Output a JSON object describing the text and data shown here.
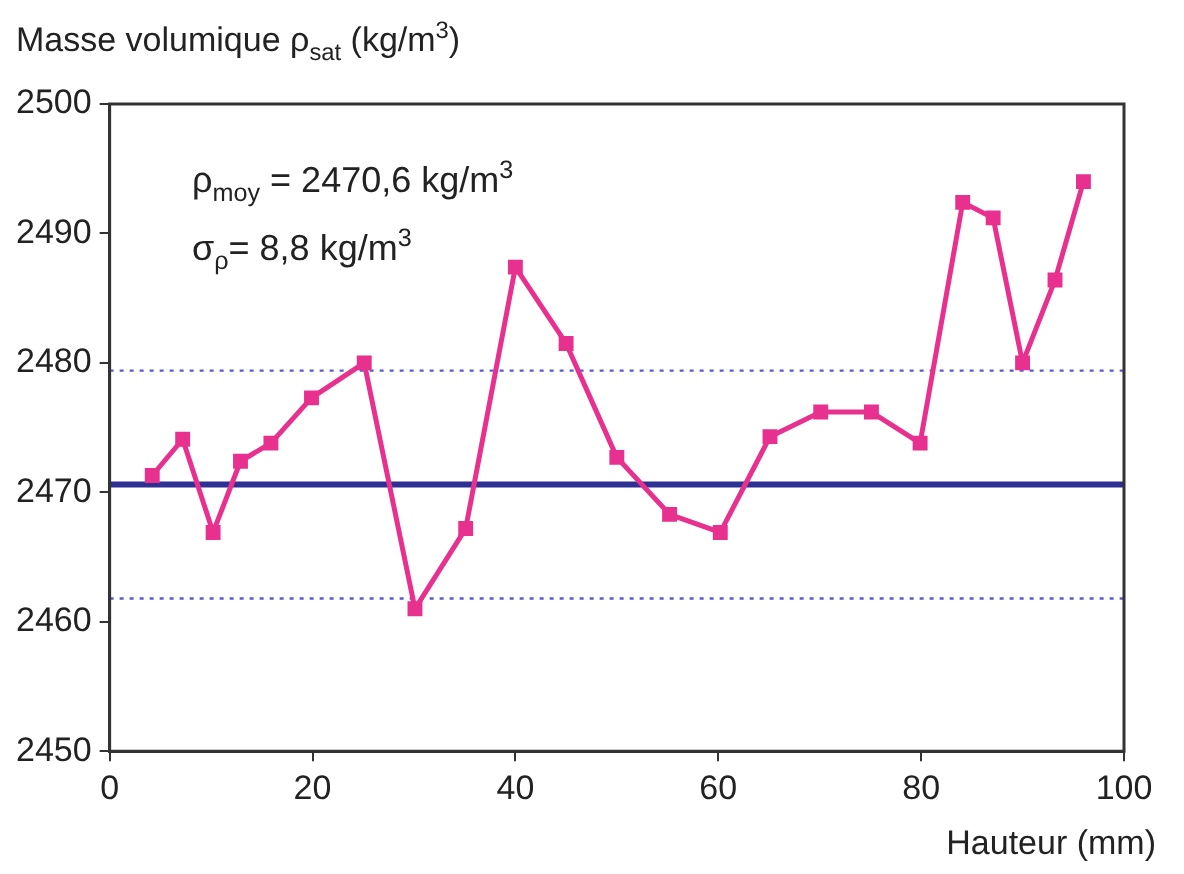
{
  "chart_data": {
    "type": "line",
    "ylabel": "Masse volumique ρ$_{sat}$ (kg/m$^{3}$)",
    "xlabel": "Hauteur (mm)",
    "annotations": [
      "ρ$_{moy}$ = 2470,6 kg/m$^{3}$",
      "σ$_{ρ}$= 8,8 kg/m$^{3}$"
    ],
    "x": [
      4.2,
      7.2,
      10.2,
      12.9,
      15.9,
      19.9,
      25.1,
      30.1,
      35.1,
      40.0,
      45.0,
      50.0,
      55.2,
      60.2,
      65.1,
      70.1,
      75.1,
      79.9,
      84.1,
      87.1,
      90.0,
      93.2,
      96.0
    ],
    "series": [
      {
        "color": "#e8318f",
        "values": [
          2471.3,
          2474.1,
          2466.9,
          2472.4,
          2473.8,
          2477.3,
          2480.0,
          2461.0,
          2467.2,
          2487.4,
          2481.5,
          2472.7,
          2468.3,
          2466.9,
          2474.3,
          2476.2,
          2476.2,
          2473.8,
          2492.4,
          2491.2,
          2480.0,
          2486.4,
          2494.0
        ]
      }
    ],
    "xlim": [
      0,
      100
    ],
    "xticks": [
      0,
      20,
      40,
      60,
      80,
      100
    ],
    "ylim": [
      2450,
      2500
    ],
    "yticks": [
      2450,
      2460,
      2470,
      2480,
      2490,
      2500
    ],
    "ref_lines": [
      {
        "axis": "y",
        "value": 2470.6,
        "color": "#2e3192",
        "line_style": "solid"
      },
      {
        "axis": "y",
        "value": 2479.4,
        "color": "#5b5bd0",
        "line_style": "dotted"
      },
      {
        "axis": "y",
        "value": 2461.8,
        "color": "#5b5bd0",
        "line_style": "dotted"
      }
    ],
    "grid": false,
    "legend": false,
    "marker": "square",
    "line_style": "solid"
  }
}
